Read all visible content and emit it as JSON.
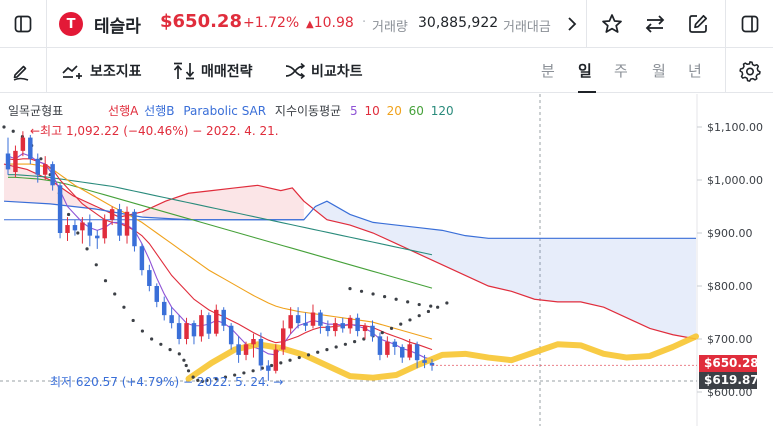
{
  "header": {
    "logo_letter": "T",
    "stock_name": "테슬라",
    "price": "$650.28",
    "change_pct": "+1.72%",
    "change_abs": "10.98",
    "separator": "·",
    "volume_label": "거래량",
    "volume": "30,885,922",
    "amount_label": "거래대금"
  },
  "toolbar": {
    "indicators_label": "보조지표",
    "strategy_label": "매매전략",
    "compare_label": "비교차트",
    "periods": [
      "분",
      "일",
      "주",
      "월",
      "년"
    ],
    "active_period": "일"
  },
  "legend": {
    "ichimoku": "일목균형표",
    "lead_a": "선행A",
    "lead_b": "선행B",
    "psar": "Parabolic SAR",
    "ma_label": "지수이동평균",
    "ma_periods": [
      "5",
      "10",
      "20",
      "60",
      "120"
    ]
  },
  "annotations": {
    "high": "←최고 1,092.22 (−40.46%) − 2022. 4. 21.",
    "low": "최저 620.57 (+4.79%) − 2022. 5. 24. →"
  },
  "price_tags": {
    "current": "$650.28",
    "low": "$619.87"
  },
  "colors": {
    "up": "#e02d3c",
    "down": "#3a6fd8",
    "brand": "#e31937"
  },
  "chart_data": {
    "type": "candlestick",
    "ylim": [
      600,
      1150
    ],
    "yticks": [
      "$1,100.00",
      "$1,000.00",
      "$900.00",
      "$800.00",
      "$700.00",
      "$600.00"
    ],
    "ytick_values": [
      1100,
      1000,
      900,
      800,
      700,
      600
    ],
    "candles": [
      [
        1050,
        1020,
        1080,
        1010
      ],
      [
        1015,
        1055,
        1065,
        1005
      ],
      [
        1055,
        1080,
        1092,
        1045
      ],
      [
        1080,
        1040,
        1085,
        1030
      ],
      [
        1040,
        1010,
        1050,
        995
      ],
      [
        1010,
        1030,
        1045,
        1000
      ],
      [
        1030,
        990,
        1035,
        980
      ],
      [
        990,
        900,
        995,
        890
      ],
      [
        900,
        915,
        930,
        885
      ],
      [
        915,
        905,
        925,
        895
      ],
      [
        905,
        920,
        930,
        880
      ],
      [
        920,
        895,
        935,
        875
      ],
      [
        895,
        890,
        905,
        870
      ],
      [
        890,
        925,
        935,
        880
      ],
      [
        925,
        945,
        950,
        915
      ],
      [
        945,
        895,
        955,
        885
      ],
      [
        895,
        940,
        950,
        880
      ],
      [
        940,
        875,
        945,
        865
      ],
      [
        875,
        830,
        880,
        820
      ],
      [
        830,
        800,
        840,
        790
      ],
      [
        800,
        770,
        805,
        760
      ],
      [
        770,
        745,
        780,
        735
      ],
      [
        745,
        730,
        760,
        720
      ],
      [
        730,
        700,
        745,
        690
      ],
      [
        700,
        730,
        740,
        690
      ],
      [
        730,
        705,
        735,
        690
      ],
      [
        705,
        745,
        755,
        695
      ],
      [
        745,
        710,
        750,
        700
      ],
      [
        710,
        755,
        765,
        705
      ],
      [
        755,
        725,
        760,
        715
      ],
      [
        725,
        690,
        730,
        680
      ],
      [
        690,
        670,
        705,
        655
      ],
      [
        670,
        690,
        695,
        660
      ],
      [
        690,
        700,
        710,
        665
      ],
      [
        700,
        650,
        712,
        640
      ],
      [
        650,
        640,
        660,
        621
      ],
      [
        640,
        680,
        690,
        635
      ],
      [
        680,
        720,
        735,
        670
      ],
      [
        720,
        745,
        760,
        710
      ],
      [
        745,
        730,
        760,
        720
      ],
      [
        730,
        725,
        750,
        715
      ],
      [
        725,
        750,
        765,
        720
      ],
      [
        750,
        725,
        755,
        710
      ],
      [
        725,
        715,
        735,
        705
      ],
      [
        715,
        730,
        740,
        705
      ],
      [
        730,
        720,
        740,
        712
      ],
      [
        720,
        740,
        745,
        710
      ],
      [
        740,
        715,
        748,
        705
      ],
      [
        715,
        725,
        730,
        700
      ],
      [
        725,
        705,
        735,
        695
      ],
      [
        705,
        670,
        712,
        660
      ],
      [
        670,
        695,
        705,
        665
      ],
      [
        695,
        685,
        700,
        670
      ],
      [
        685,
        665,
        690,
        655
      ],
      [
        665,
        690,
        700,
        660
      ],
      [
        690,
        660,
        695,
        645
      ],
      [
        660,
        655,
        670,
        645
      ],
      [
        655,
        650,
        662,
        640
      ]
    ],
    "ma5": [
      1045,
      1040,
      1050,
      1045,
      1035,
      1030,
      1010,
      980,
      950,
      935,
      920,
      910,
      905,
      910,
      920,
      920,
      915,
      905,
      880,
      850,
      815,
      785,
      760,
      745,
      730,
      725,
      725,
      728,
      735,
      730,
      720,
      705,
      690,
      685,
      680,
      672,
      670,
      690,
      710,
      725,
      730,
      735,
      732,
      728,
      728,
      726,
      728,
      724,
      720,
      712,
      700,
      695,
      690,
      682,
      678,
      672,
      665,
      662
    ],
    "ma10": [
      1040,
      1038,
      1040,
      1040,
      1035,
      1030,
      1020,
      1000,
      985,
      970,
      955,
      945,
      935,
      925,
      920,
      918,
      912,
      905,
      895,
      880,
      860,
      840,
      820,
      805,
      790,
      775,
      765,
      755,
      748,
      742,
      735,
      728,
      720,
      712,
      705,
      698,
      693,
      695,
      700,
      705,
      712,
      718,
      722,
      722,
      724,
      725,
      727,
      726,
      725,
      722,
      716,
      710,
      705,
      700,
      694,
      690,
      685,
      680
    ],
    "ma20": [
      1030,
      1030,
      1030,
      1030,
      1028,
      1025,
      1020,
      1010,
      1000,
      990,
      982,
      974,
      966,
      958,
      950,
      943,
      936,
      928,
      920,
      910,
      900,
      890,
      880,
      870,
      860,
      850,
      840,
      830,
      822,
      814,
      806,
      798,
      790,
      782,
      775,
      768,
      762,
      758,
      755,
      752,
      750,
      748,
      746,
      744,
      742,
      740,
      738,
      736,
      734,
      732,
      728,
      724,
      720,
      716,
      712,
      708,
      704,
      700
    ],
    "ma60": [
      1005,
      1005,
      1004,
      1003,
      1002,
      1000,
      998,
      995,
      992,
      988,
      984,
      980,
      976,
      972,
      968,
      964,
      960,
      956,
      952,
      948,
      944,
      940,
      936,
      932,
      928,
      924,
      920,
      916,
      912,
      908,
      904,
      900,
      896,
      892,
      888,
      884,
      880,
      876,
      872,
      868,
      864,
      860,
      856,
      852,
      848,
      844,
      840,
      836,
      832,
      828,
      824,
      820,
      816,
      812,
      808,
      804,
      800,
      796
    ],
    "ma120": [
      1010,
      1010,
      1009,
      1008,
      1007,
      1006,
      1004,
      1002,
      1000,
      998,
      996,
      994,
      992,
      990,
      988,
      985,
      982,
      979,
      976,
      973,
      970,
      967,
      964,
      961,
      958,
      955,
      952,
      949,
      946,
      943,
      940,
      937,
      934,
      931,
      928,
      925,
      922,
      919,
      916,
      913,
      910,
      907,
      904,
      901,
      898,
      895,
      892,
      889,
      886,
      883,
      880,
      877,
      874,
      871,
      868,
      865,
      862,
      859
    ],
    "psar": [
      [
        0,
        1100
      ],
      [
        4,
        1092
      ],
      [
        8,
        1082
      ],
      [
        12,
        1065
      ],
      [
        16,
        1040
      ],
      [
        20,
        1010
      ],
      [
        24,
        975
      ],
      [
        28,
        935
      ],
      [
        32,
        900
      ],
      [
        36,
        870
      ],
      [
        40,
        840
      ],
      [
        44,
        810
      ],
      [
        48,
        785
      ],
      [
        52,
        760
      ],
      [
        56,
        735
      ],
      [
        60,
        715
      ],
      [
        64,
        700
      ],
      [
        68,
        690
      ],
      [
        72,
        680
      ],
      [
        76,
        672
      ],
      [
        78,
        660
      ],
      [
        79,
        650
      ],
      [
        80,
        640
      ],
      [
        82,
        628
      ],
      [
        84,
        622
      ],
      [
        86,
        620
      ],
      [
        88,
        622
      ],
      [
        92,
        625
      ],
      [
        96,
        628
      ],
      [
        100,
        632
      ],
      [
        104,
        636
      ],
      [
        108,
        640
      ],
      [
        112,
        645
      ],
      [
        116,
        650
      ],
      [
        120,
        655
      ],
      [
        124,
        660
      ],
      [
        128,
        665
      ],
      [
        132,
        670
      ],
      [
        136,
        675
      ],
      [
        140,
        680
      ],
      [
        144,
        685
      ],
      [
        148,
        690
      ],
      [
        152,
        695
      ],
      [
        156,
        700
      ],
      [
        160,
        706
      ],
      [
        164,
        712
      ],
      [
        168,
        720
      ],
      [
        172,
        728
      ],
      [
        176,
        736
      ],
      [
        180,
        744
      ],
      [
        184,
        752
      ],
      [
        188,
        760
      ],
      [
        192,
        768
      ]
    ],
    "psar2": [
      [
        150,
        795
      ],
      [
        155,
        790
      ],
      [
        160,
        785
      ],
      [
        165,
        780
      ],
      [
        170,
        775
      ],
      [
        175,
        770
      ],
      [
        180,
        765
      ],
      [
        185,
        762
      ]
    ],
    "span_a": [
      [
        0,
        1030
      ],
      [
        10,
        1020
      ],
      [
        20,
        1000
      ],
      [
        30,
        970
      ],
      [
        40,
        950
      ],
      [
        50,
        930
      ],
      [
        60,
        940
      ],
      [
        70,
        960
      ],
      [
        80,
        975
      ],
      [
        90,
        980
      ],
      [
        100,
        985
      ],
      [
        110,
        990
      ],
      [
        120,
        980
      ],
      [
        125,
        985
      ],
      [
        130,
        960
      ],
      [
        140,
        925
      ],
      [
        150,
        915
      ],
      [
        160,
        900
      ],
      [
        170,
        880
      ],
      [
        180,
        860
      ],
      [
        190,
        840
      ],
      [
        200,
        820
      ],
      [
        210,
        800
      ],
      [
        220,
        790
      ],
      [
        230,
        775
      ],
      [
        240,
        770
      ],
      [
        250,
        770
      ],
      [
        260,
        760
      ],
      [
        270,
        740
      ],
      [
        280,
        720
      ],
      [
        290,
        708
      ],
      [
        300,
        700
      ]
    ],
    "span_b": [
      [
        0,
        960
      ],
      [
        20,
        955
      ],
      [
        40,
        945
      ],
      [
        60,
        930
      ],
      [
        80,
        925
      ],
      [
        100,
        925
      ],
      [
        120,
        925
      ],
      [
        130,
        925
      ],
      [
        135,
        950
      ],
      [
        140,
        960
      ],
      [
        150,
        935
      ],
      [
        160,
        920
      ],
      [
        170,
        915
      ],
      [
        180,
        910
      ],
      [
        190,
        905
      ],
      [
        200,
        895
      ],
      [
        210,
        890
      ],
      [
        220,
        890
      ],
      [
        230,
        890
      ],
      [
        240,
        890
      ],
      [
        250,
        890
      ],
      [
        260,
        890
      ],
      [
        270,
        890
      ],
      [
        280,
        890
      ],
      [
        290,
        890
      ],
      [
        300,
        890
      ]
    ],
    "base_line": [
      [
        0,
        925
      ],
      [
        130,
        925
      ]
    ],
    "yellow_path": [
      [
        80,
        625
      ],
      [
        90,
        655
      ],
      [
        100,
        680
      ],
      [
        110,
        690
      ],
      [
        120,
        683
      ],
      [
        130,
        670
      ],
      [
        140,
        650
      ],
      [
        150,
        630
      ],
      [
        160,
        627
      ],
      [
        170,
        632
      ],
      [
        180,
        652
      ],
      [
        190,
        670
      ],
      [
        200,
        672
      ],
      [
        210,
        665
      ],
      [
        220,
        660
      ],
      [
        230,
        675
      ],
      [
        240,
        690
      ],
      [
        250,
        688
      ],
      [
        260,
        672
      ],
      [
        270,
        665
      ],
      [
        280,
        668
      ],
      [
        290,
        685
      ],
      [
        300,
        705
      ]
    ]
  }
}
